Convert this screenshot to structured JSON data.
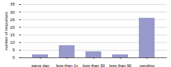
{
  "chart_data": {
    "type": "bar",
    "categories": [
      "same day",
      "less than 1x",
      "less than 30",
      "less than 90",
      "pending"
    ],
    "values": [
      2,
      8,
      4,
      2,
      26
    ],
    "color": "#9999cc",
    "ylabel": "number of responses",
    "ylim": [
      0,
      35
    ],
    "yticks": [
      0,
      5,
      10,
      15,
      20,
      25,
      30,
      35
    ],
    "grid": true
  }
}
